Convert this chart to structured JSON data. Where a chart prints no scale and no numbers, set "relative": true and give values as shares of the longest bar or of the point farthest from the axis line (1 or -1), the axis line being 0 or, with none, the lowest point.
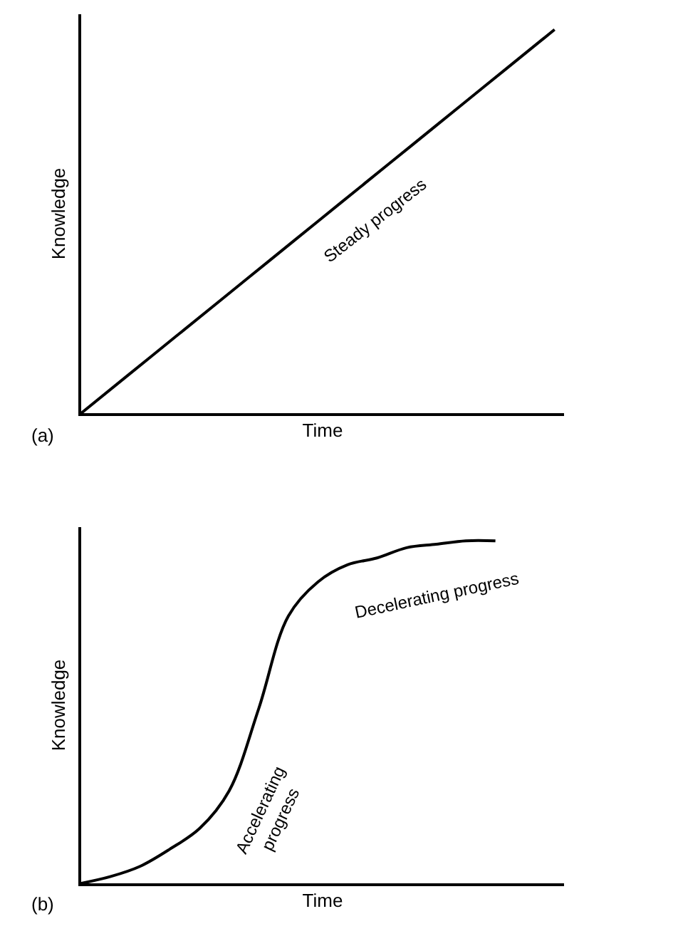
{
  "chart_data": [
    {
      "type": "line",
      "relative": true,
      "xlabel": "Time",
      "ylabel": "Knowledge",
      "categories": [
        null,
        null,
        null,
        null,
        null,
        null,
        null,
        null,
        null,
        null,
        null
      ],
      "series": [
        {
          "color": "#000000",
          "values": [
            0,
            0.1,
            0.2,
            0.3,
            0.4,
            0.5,
            0.6,
            0.7,
            0.8,
            0.9,
            1
          ]
        }
      ],
      "annotations": [
        "Steady progress",
        "(a)"
      ],
      "grid": false,
      "marker": "none",
      "line_style": "solid"
    },
    {
      "type": "line",
      "relative": true,
      "xlabel": "Time",
      "ylabel": "Knowledge",
      "categories": [
        null,
        null,
        null,
        null,
        null,
        null,
        null,
        null,
        null,
        null,
        null,
        null,
        null,
        null,
        null,
        null,
        null
      ],
      "series": [
        {
          "color": "#000000",
          "values": [
            0,
            0.02,
            0.05,
            0.1,
            0.16,
            0.27,
            0.51,
            0.78,
            0.88,
            0.93,
            0.95,
            0.98,
            0.99,
            1,
            1,
            null,
            null
          ]
        }
      ],
      "annotations": [
        "Accelerating\nprogress",
        "Decelerating progress",
        "(b)"
      ],
      "grid": false,
      "marker": "none",
      "line_style": "solid"
    }
  ]
}
